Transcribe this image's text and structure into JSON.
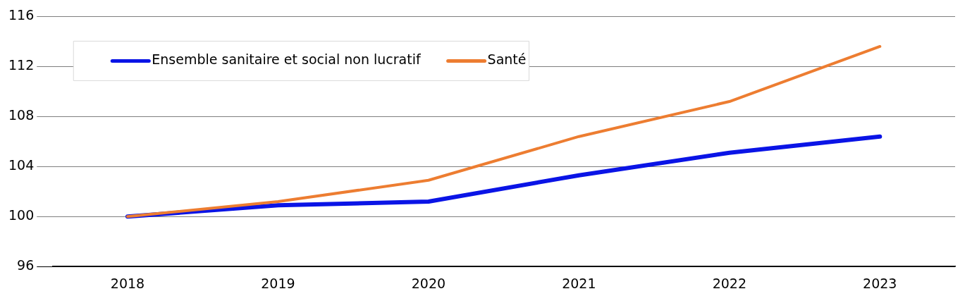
{
  "chart_data": {
    "type": "line",
    "categories": [
      "2018",
      "2019",
      "2020",
      "2021",
      "2022",
      "2023"
    ],
    "series": [
      {
        "name": "Ensemble sanitaire et social non lucratif",
        "color": "#0a14e6",
        "values": [
          100,
          100.9,
          101.2,
          103.3,
          105.1,
          106.4
        ]
      },
      {
        "name": "Santé",
        "color": "#ed7d31",
        "values": [
          100,
          101.2,
          102.9,
          106.4,
          109.2,
          113.6
        ]
      }
    ],
    "ylim": [
      96,
      116
    ],
    "yticks": [
      96,
      100,
      104,
      108,
      112,
      116
    ],
    "grid": "y",
    "legend": "top left",
    "marker": "none",
    "line_style": "solid"
  }
}
